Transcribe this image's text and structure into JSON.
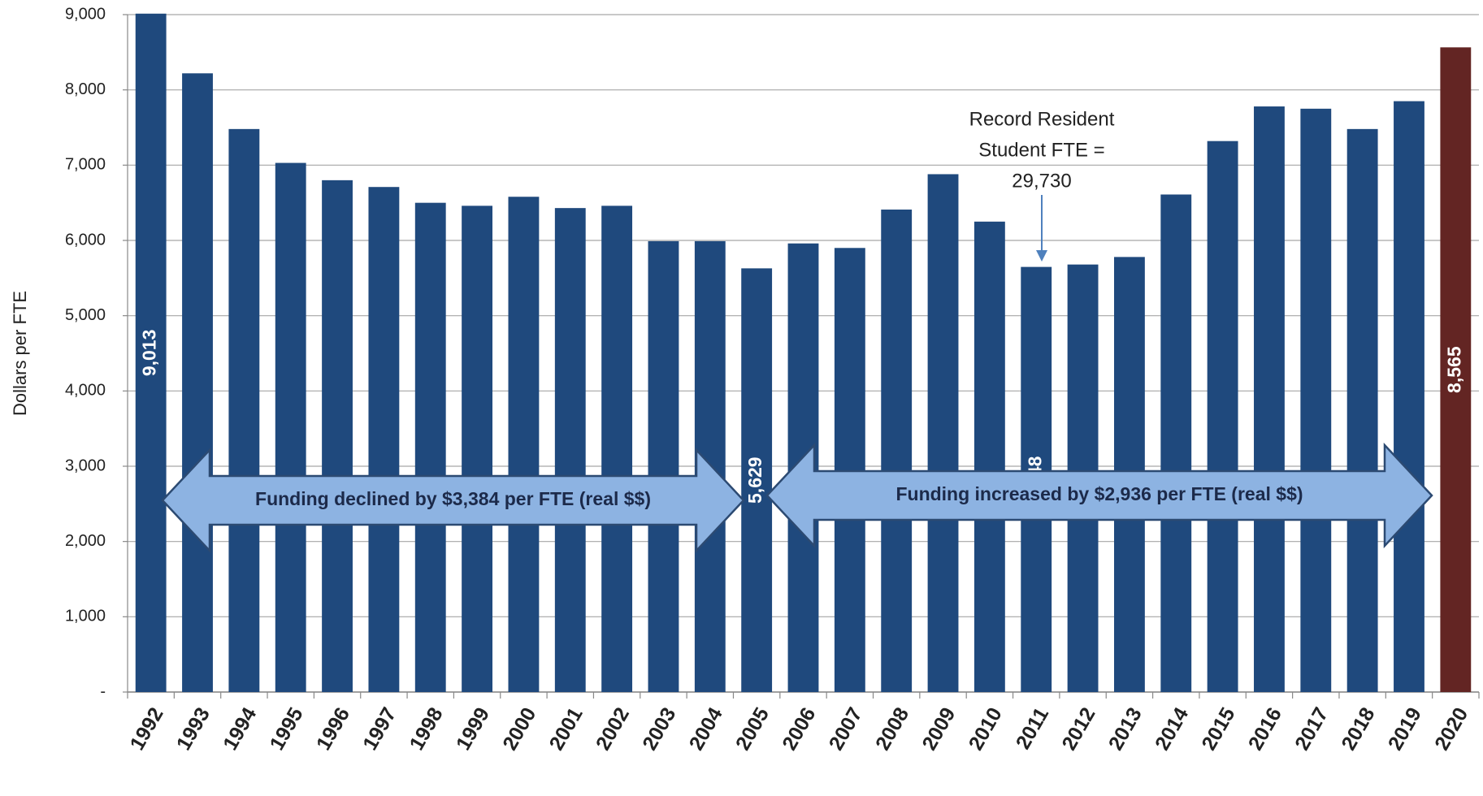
{
  "chart_data": {
    "type": "bar",
    "y_axis_label": "Dollars per FTE",
    "categories": [
      "1992",
      "1993",
      "1994",
      "1995",
      "1996",
      "1997",
      "1998",
      "1999",
      "2000",
      "2001",
      "2002",
      "2003",
      "2004",
      "2005",
      "2006",
      "2007",
      "2008",
      "2009",
      "2010",
      "2011",
      "2012",
      "2013",
      "2014",
      "2015",
      "2016",
      "2017",
      "2018",
      "2019",
      "2020"
    ],
    "values": [
      9013,
      8220,
      7480,
      7030,
      6800,
      6710,
      6500,
      6460,
      6580,
      6430,
      6460,
      5990,
      5990,
      5629,
      5960,
      5900,
      6410,
      6880,
      6250,
      5648,
      5680,
      5780,
      6610,
      7320,
      7780,
      7750,
      7480,
      7850,
      8565
    ],
    "value_labels": [
      "9,013",
      null,
      null,
      null,
      null,
      null,
      null,
      null,
      null,
      null,
      null,
      null,
      null,
      "5,629",
      null,
      null,
      null,
      null,
      null,
      "5,648",
      null,
      null,
      null,
      null,
      null,
      null,
      null,
      null,
      "8,565"
    ],
    "colors": [
      "#1f497d",
      "#1f497d",
      "#1f497d",
      "#1f497d",
      "#1f497d",
      "#1f497d",
      "#1f497d",
      "#1f497d",
      "#1f497d",
      "#1f497d",
      "#1f497d",
      "#1f497d",
      "#1f497d",
      "#1f497d",
      "#1f497d",
      "#1f497d",
      "#1f497d",
      "#1f497d",
      "#1f497d",
      "#1f497d",
      "#1f497d",
      "#1f497d",
      "#1f497d",
      "#1f497d",
      "#1f497d",
      "#1f497d",
      "#1f497d",
      "#1f497d",
      "#632523"
    ],
    "ylim": [
      0,
      9000
    ],
    "yticks": [
      {
        "value": 0,
        "label": "-"
      },
      {
        "value": 1000,
        "label": "1,000"
      },
      {
        "value": 2000,
        "label": "2,000"
      },
      {
        "value": 3000,
        "label": "3,000"
      },
      {
        "value": 4000,
        "label": "4,000"
      },
      {
        "value": 5000,
        "label": "5,000"
      },
      {
        "value": 6000,
        "label": "6,000"
      },
      {
        "value": 7000,
        "label": "7,000"
      },
      {
        "value": 8000,
        "label": "8,000"
      },
      {
        "value": 9000,
        "label": "9,000"
      }
    ],
    "grid": true,
    "annotations": {
      "left_arrow": "Funding declined by $3,384 per FTE (real $$)",
      "right_arrow": "Funding increased by $2,936 per FTE (real $$)",
      "callout_lines": [
        "Record Resident",
        "Student FTE =",
        "29,730"
      ]
    }
  }
}
